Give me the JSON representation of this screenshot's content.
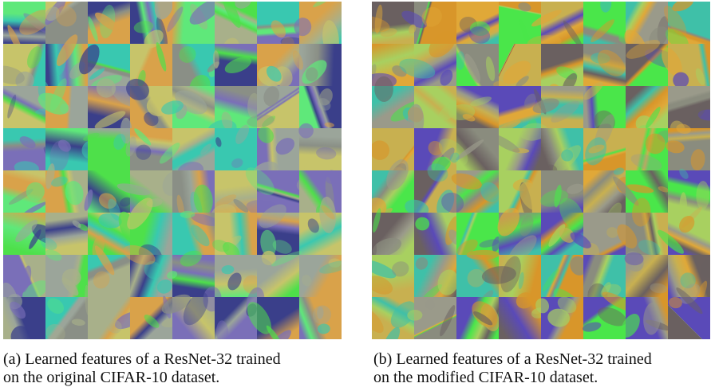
{
  "figures": [
    {
      "caption_lines": [
        "(a) Learned features of a ResNet-32 trained",
        "on the original CIFAR-10 dataset."
      ]
    },
    {
      "caption_lines": [
        "(b) Learned features of a ResNet-32 trained",
        "on the modified CIFAR-10 dataset."
      ]
    }
  ]
}
